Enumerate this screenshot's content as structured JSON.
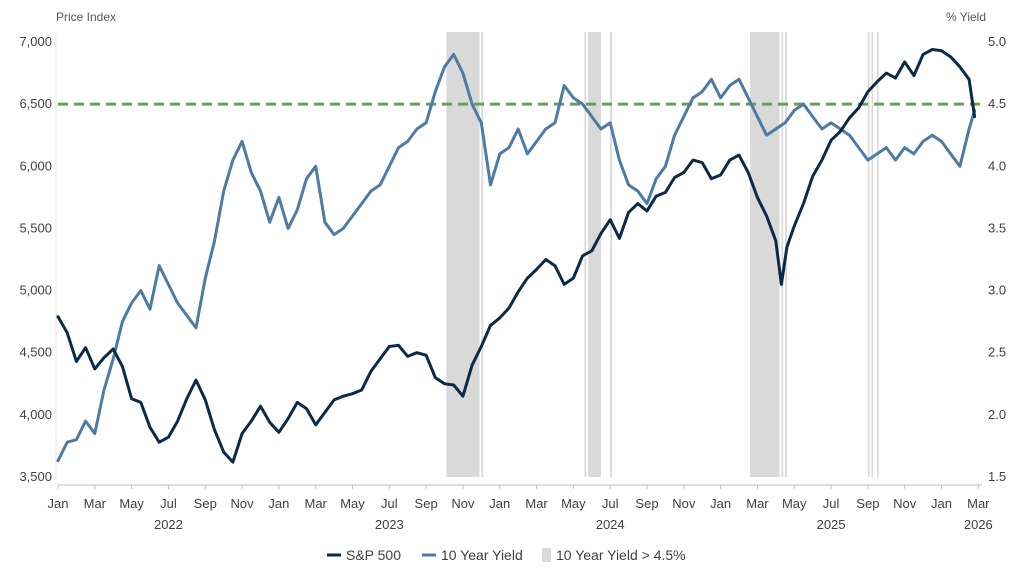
{
  "chart_data": {
    "type": "line",
    "title": "",
    "y_left_label": "Price Index",
    "y_right_label": "% Yield",
    "y_left_range": [
      3500,
      7000
    ],
    "y_right_range": [
      1.5,
      5.0
    ],
    "y_left_ticks": [
      "3,500",
      "4,000",
      "4,500",
      "5,000",
      "5,500",
      "6,000",
      "6,500",
      "7,000"
    ],
    "y_right_ticks": [
      "1.5",
      "2.0",
      "2.5",
      "3.0",
      "3.5",
      "4.0",
      "4.5",
      "5.0"
    ],
    "x_range": [
      "2022-01",
      "2026-03"
    ],
    "month_ticks": [
      {
        "label": "Jan",
        "t": 0
      },
      {
        "label": "Mar",
        "t": 2
      },
      {
        "label": "May",
        "t": 4
      },
      {
        "label": "Jul",
        "t": 6
      },
      {
        "label": "Sep",
        "t": 8
      },
      {
        "label": "Nov",
        "t": 10
      },
      {
        "label": "Jan",
        "t": 12
      },
      {
        "label": "Mar",
        "t": 14
      },
      {
        "label": "May",
        "t": 16
      },
      {
        "label": "Jul",
        "t": 18
      },
      {
        "label": "Sep",
        "t": 20
      },
      {
        "label": "Nov",
        "t": 22
      },
      {
        "label": "Jan",
        "t": 24
      },
      {
        "label": "Mar",
        "t": 26
      },
      {
        "label": "May",
        "t": 28
      },
      {
        "label": "Jul",
        "t": 30
      },
      {
        "label": "Sep",
        "t": 32
      },
      {
        "label": "Nov",
        "t": 34
      },
      {
        "label": "Jan",
        "t": 36
      },
      {
        "label": "Mar",
        "t": 38
      },
      {
        "label": "May",
        "t": 40
      },
      {
        "label": "Jul",
        "t": 42
      },
      {
        "label": "Sep",
        "t": 44
      },
      {
        "label": "Nov",
        "t": 46
      },
      {
        "label": "Jan",
        "t": 48
      },
      {
        "label": "Mar",
        "t": 50
      }
    ],
    "year_labels": [
      {
        "label": "2022",
        "t": 6
      },
      {
        "label": "2023",
        "t": 18
      },
      {
        "label": "2024",
        "t": 30
      },
      {
        "label": "2025",
        "t": 42
      },
      {
        "label": "2026",
        "t": 50
      }
    ],
    "threshold_line": {
      "value": 4.5,
      "axis": "right",
      "color": "#6e9a5c"
    },
    "shaded_periods": [
      {
        "start": 21.1,
        "end": 22.9
      },
      {
        "start": 23.0,
        "end": 23.1
      },
      {
        "start": 28.6,
        "end": 28.7
      },
      {
        "start": 28.8,
        "end": 29.5
      },
      {
        "start": 30.0,
        "end": 30.1
      },
      {
        "start": 37.6,
        "end": 39.2
      },
      {
        "start": 39.3,
        "end": 39.4
      },
      {
        "start": 39.5,
        "end": 39.6
      },
      {
        "start": 44.0,
        "end": 44.05
      },
      {
        "start": 44.2,
        "end": 44.25
      },
      {
        "start": 44.5,
        "end": 44.55
      }
    ],
    "series": [
      {
        "name": "S&P 500",
        "axis": "left",
        "color": "#0b2a47",
        "points": [
          [
            0,
            4790
          ],
          [
            0.5,
            4660
          ],
          [
            1,
            4430
          ],
          [
            1.5,
            4540
          ],
          [
            2,
            4370
          ],
          [
            2.5,
            4460
          ],
          [
            3,
            4530
          ],
          [
            3.5,
            4390
          ],
          [
            4,
            4130
          ],
          [
            4.5,
            4100
          ],
          [
            5,
            3900
          ],
          [
            5.5,
            3780
          ],
          [
            6,
            3820
          ],
          [
            6.5,
            3950
          ],
          [
            7,
            4130
          ],
          [
            7.5,
            4280
          ],
          [
            8,
            4120
          ],
          [
            8.5,
            3880
          ],
          [
            9,
            3700
          ],
          [
            9.5,
            3620
          ],
          [
            10,
            3850
          ],
          [
            10.5,
            3950
          ],
          [
            11,
            4070
          ],
          [
            11.5,
            3940
          ],
          [
            12,
            3860
          ],
          [
            12.5,
            3970
          ],
          [
            13,
            4100
          ],
          [
            13.5,
            4050
          ],
          [
            14,
            3920
          ],
          [
            14.5,
            4020
          ],
          [
            15,
            4120
          ],
          [
            15.5,
            4150
          ],
          [
            16,
            4170
          ],
          [
            16.5,
            4200
          ],
          [
            17,
            4350
          ],
          [
            17.5,
            4450
          ],
          [
            18,
            4550
          ],
          [
            18.5,
            4560
          ],
          [
            19,
            4470
          ],
          [
            19.5,
            4500
          ],
          [
            20,
            4480
          ],
          [
            20.5,
            4300
          ],
          [
            21,
            4250
          ],
          [
            21.5,
            4240
          ],
          [
            22,
            4150
          ],
          [
            22.5,
            4400
          ],
          [
            23,
            4550
          ],
          [
            23.5,
            4720
          ],
          [
            24,
            4780
          ],
          [
            24.5,
            4860
          ],
          [
            25,
            4990
          ],
          [
            25.5,
            5100
          ],
          [
            26,
            5170
          ],
          [
            26.5,
            5250
          ],
          [
            27,
            5200
          ],
          [
            27.5,
            5050
          ],
          [
            28,
            5100
          ],
          [
            28.5,
            5280
          ],
          [
            29,
            5320
          ],
          [
            29.5,
            5460
          ],
          [
            30,
            5570
          ],
          [
            30.5,
            5420
          ],
          [
            31,
            5630
          ],
          [
            31.5,
            5700
          ],
          [
            32,
            5640
          ],
          [
            32.5,
            5760
          ],
          [
            33,
            5790
          ],
          [
            33.5,
            5910
          ],
          [
            34,
            5950
          ],
          [
            34.5,
            6050
          ],
          [
            35,
            6030
          ],
          [
            35.5,
            5900
          ],
          [
            36,
            5930
          ],
          [
            36.5,
            6050
          ],
          [
            37,
            6090
          ],
          [
            37.5,
            5950
          ],
          [
            38,
            5750
          ],
          [
            38.5,
            5600
          ],
          [
            39,
            5400
          ],
          [
            39.3,
            5050
          ],
          [
            39.6,
            5350
          ],
          [
            40,
            5520
          ],
          [
            40.5,
            5700
          ],
          [
            41,
            5920
          ],
          [
            41.5,
            6050
          ],
          [
            42,
            6210
          ],
          [
            42.5,
            6280
          ],
          [
            43,
            6390
          ],
          [
            43.5,
            6470
          ],
          [
            44,
            6600
          ],
          [
            44.5,
            6680
          ],
          [
            45,
            6750
          ],
          [
            45.5,
            6710
          ],
          [
            46,
            6840
          ],
          [
            46.5,
            6730
          ],
          [
            47,
            6900
          ],
          [
            47.5,
            6940
          ],
          [
            48,
            6930
          ],
          [
            48.5,
            6880
          ],
          [
            49,
            6800
          ],
          [
            49.5,
            6700
          ],
          [
            49.8,
            6400
          ]
        ]
      },
      {
        "name": "10 Year Yield",
        "axis": "right",
        "color": "#4d7ba3",
        "points": [
          [
            0,
            1.63
          ],
          [
            0.5,
            1.78
          ],
          [
            1,
            1.8
          ],
          [
            1.5,
            1.95
          ],
          [
            2,
            1.85
          ],
          [
            2.5,
            2.2
          ],
          [
            3,
            2.45
          ],
          [
            3.5,
            2.75
          ],
          [
            4,
            2.9
          ],
          [
            4.5,
            3.0
          ],
          [
            5,
            2.85
          ],
          [
            5.5,
            3.2
          ],
          [
            6,
            3.05
          ],
          [
            6.5,
            2.9
          ],
          [
            7,
            2.8
          ],
          [
            7.5,
            2.7
          ],
          [
            8,
            3.1
          ],
          [
            8.5,
            3.4
          ],
          [
            9,
            3.8
          ],
          [
            9.5,
            4.05
          ],
          [
            10,
            4.2
          ],
          [
            10.5,
            3.95
          ],
          [
            11,
            3.8
          ],
          [
            11.5,
            3.55
          ],
          [
            12,
            3.75
          ],
          [
            12.5,
            3.5
          ],
          [
            13,
            3.65
          ],
          [
            13.5,
            3.9
          ],
          [
            14,
            4.0
          ],
          [
            14.5,
            3.55
          ],
          [
            15,
            3.45
          ],
          [
            15.5,
            3.5
          ],
          [
            16,
            3.6
          ],
          [
            16.5,
            3.7
          ],
          [
            17,
            3.8
          ],
          [
            17.5,
            3.85
          ],
          [
            18,
            4.0
          ],
          [
            18.5,
            4.15
          ],
          [
            19,
            4.2
          ],
          [
            19.5,
            4.3
          ],
          [
            20,
            4.35
          ],
          [
            20.5,
            4.6
          ],
          [
            21,
            4.8
          ],
          [
            21.5,
            4.9
          ],
          [
            22,
            4.75
          ],
          [
            22.5,
            4.5
          ],
          [
            23,
            4.35
          ],
          [
            23.5,
            3.85
          ],
          [
            24,
            4.1
          ],
          [
            24.5,
            4.15
          ],
          [
            25,
            4.3
          ],
          [
            25.5,
            4.1
          ],
          [
            26,
            4.2
          ],
          [
            26.5,
            4.3
          ],
          [
            27,
            4.35
          ],
          [
            27.5,
            4.65
          ],
          [
            28,
            4.55
          ],
          [
            28.5,
            4.5
          ],
          [
            29,
            4.4
          ],
          [
            29.5,
            4.3
          ],
          [
            30,
            4.35
          ],
          [
            30.5,
            4.05
          ],
          [
            31,
            3.85
          ],
          [
            31.5,
            3.8
          ],
          [
            32,
            3.7
          ],
          [
            32.5,
            3.9
          ],
          [
            33,
            4.0
          ],
          [
            33.5,
            4.25
          ],
          [
            34,
            4.4
          ],
          [
            34.5,
            4.55
          ],
          [
            35,
            4.6
          ],
          [
            35.5,
            4.7
          ],
          [
            36,
            4.55
          ],
          [
            36.5,
            4.65
          ],
          [
            37,
            4.7
          ],
          [
            37.5,
            4.55
          ],
          [
            38,
            4.4
          ],
          [
            38.5,
            4.25
          ],
          [
            39,
            4.3
          ],
          [
            39.5,
            4.35
          ],
          [
            40,
            4.45
          ],
          [
            40.5,
            4.5
          ],
          [
            41,
            4.4
          ],
          [
            41.5,
            4.3
          ],
          [
            42,
            4.35
          ],
          [
            42.5,
            4.3
          ],
          [
            43,
            4.25
          ],
          [
            43.5,
            4.15
          ],
          [
            44,
            4.05
          ],
          [
            44.5,
            4.1
          ],
          [
            45,
            4.15
          ],
          [
            45.5,
            4.05
          ],
          [
            46,
            4.15
          ],
          [
            46.5,
            4.1
          ],
          [
            47,
            4.2
          ],
          [
            47.5,
            4.25
          ],
          [
            48,
            4.2
          ],
          [
            48.5,
            4.1
          ],
          [
            49,
            4.0
          ],
          [
            49.5,
            4.3
          ],
          [
            49.8,
            4.45
          ]
        ]
      }
    ],
    "legend": [
      {
        "label": "S&P 500",
        "kind": "line",
        "color": "#0b2a47"
      },
      {
        "label": "10 Year Yield",
        "kind": "line",
        "color": "#4d7ba3"
      },
      {
        "label": "10 Year Yield > 4.5%",
        "kind": "box",
        "color": "#d9d9d9"
      }
    ],
    "legend_position": "bottom"
  }
}
